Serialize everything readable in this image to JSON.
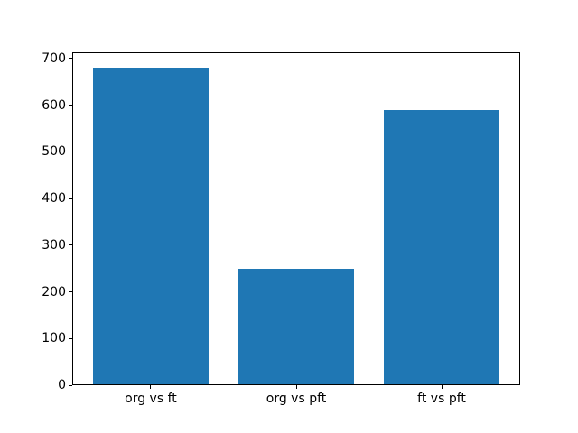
{
  "chart_data": {
    "type": "bar",
    "categories": [
      "org vs ft",
      "org vs pft",
      "ft vs pft"
    ],
    "values": [
      680,
      249,
      589
    ],
    "title": "",
    "xlabel": "",
    "ylabel": "",
    "ylim": [
      0,
      714
    ],
    "yticks": [
      0,
      100,
      200,
      300,
      400,
      500,
      600,
      700
    ],
    "bar_color": "#1f77b4",
    "frame_color": "#000000",
    "background_color": "#ffffff",
    "grid": false,
    "legend": null
  }
}
